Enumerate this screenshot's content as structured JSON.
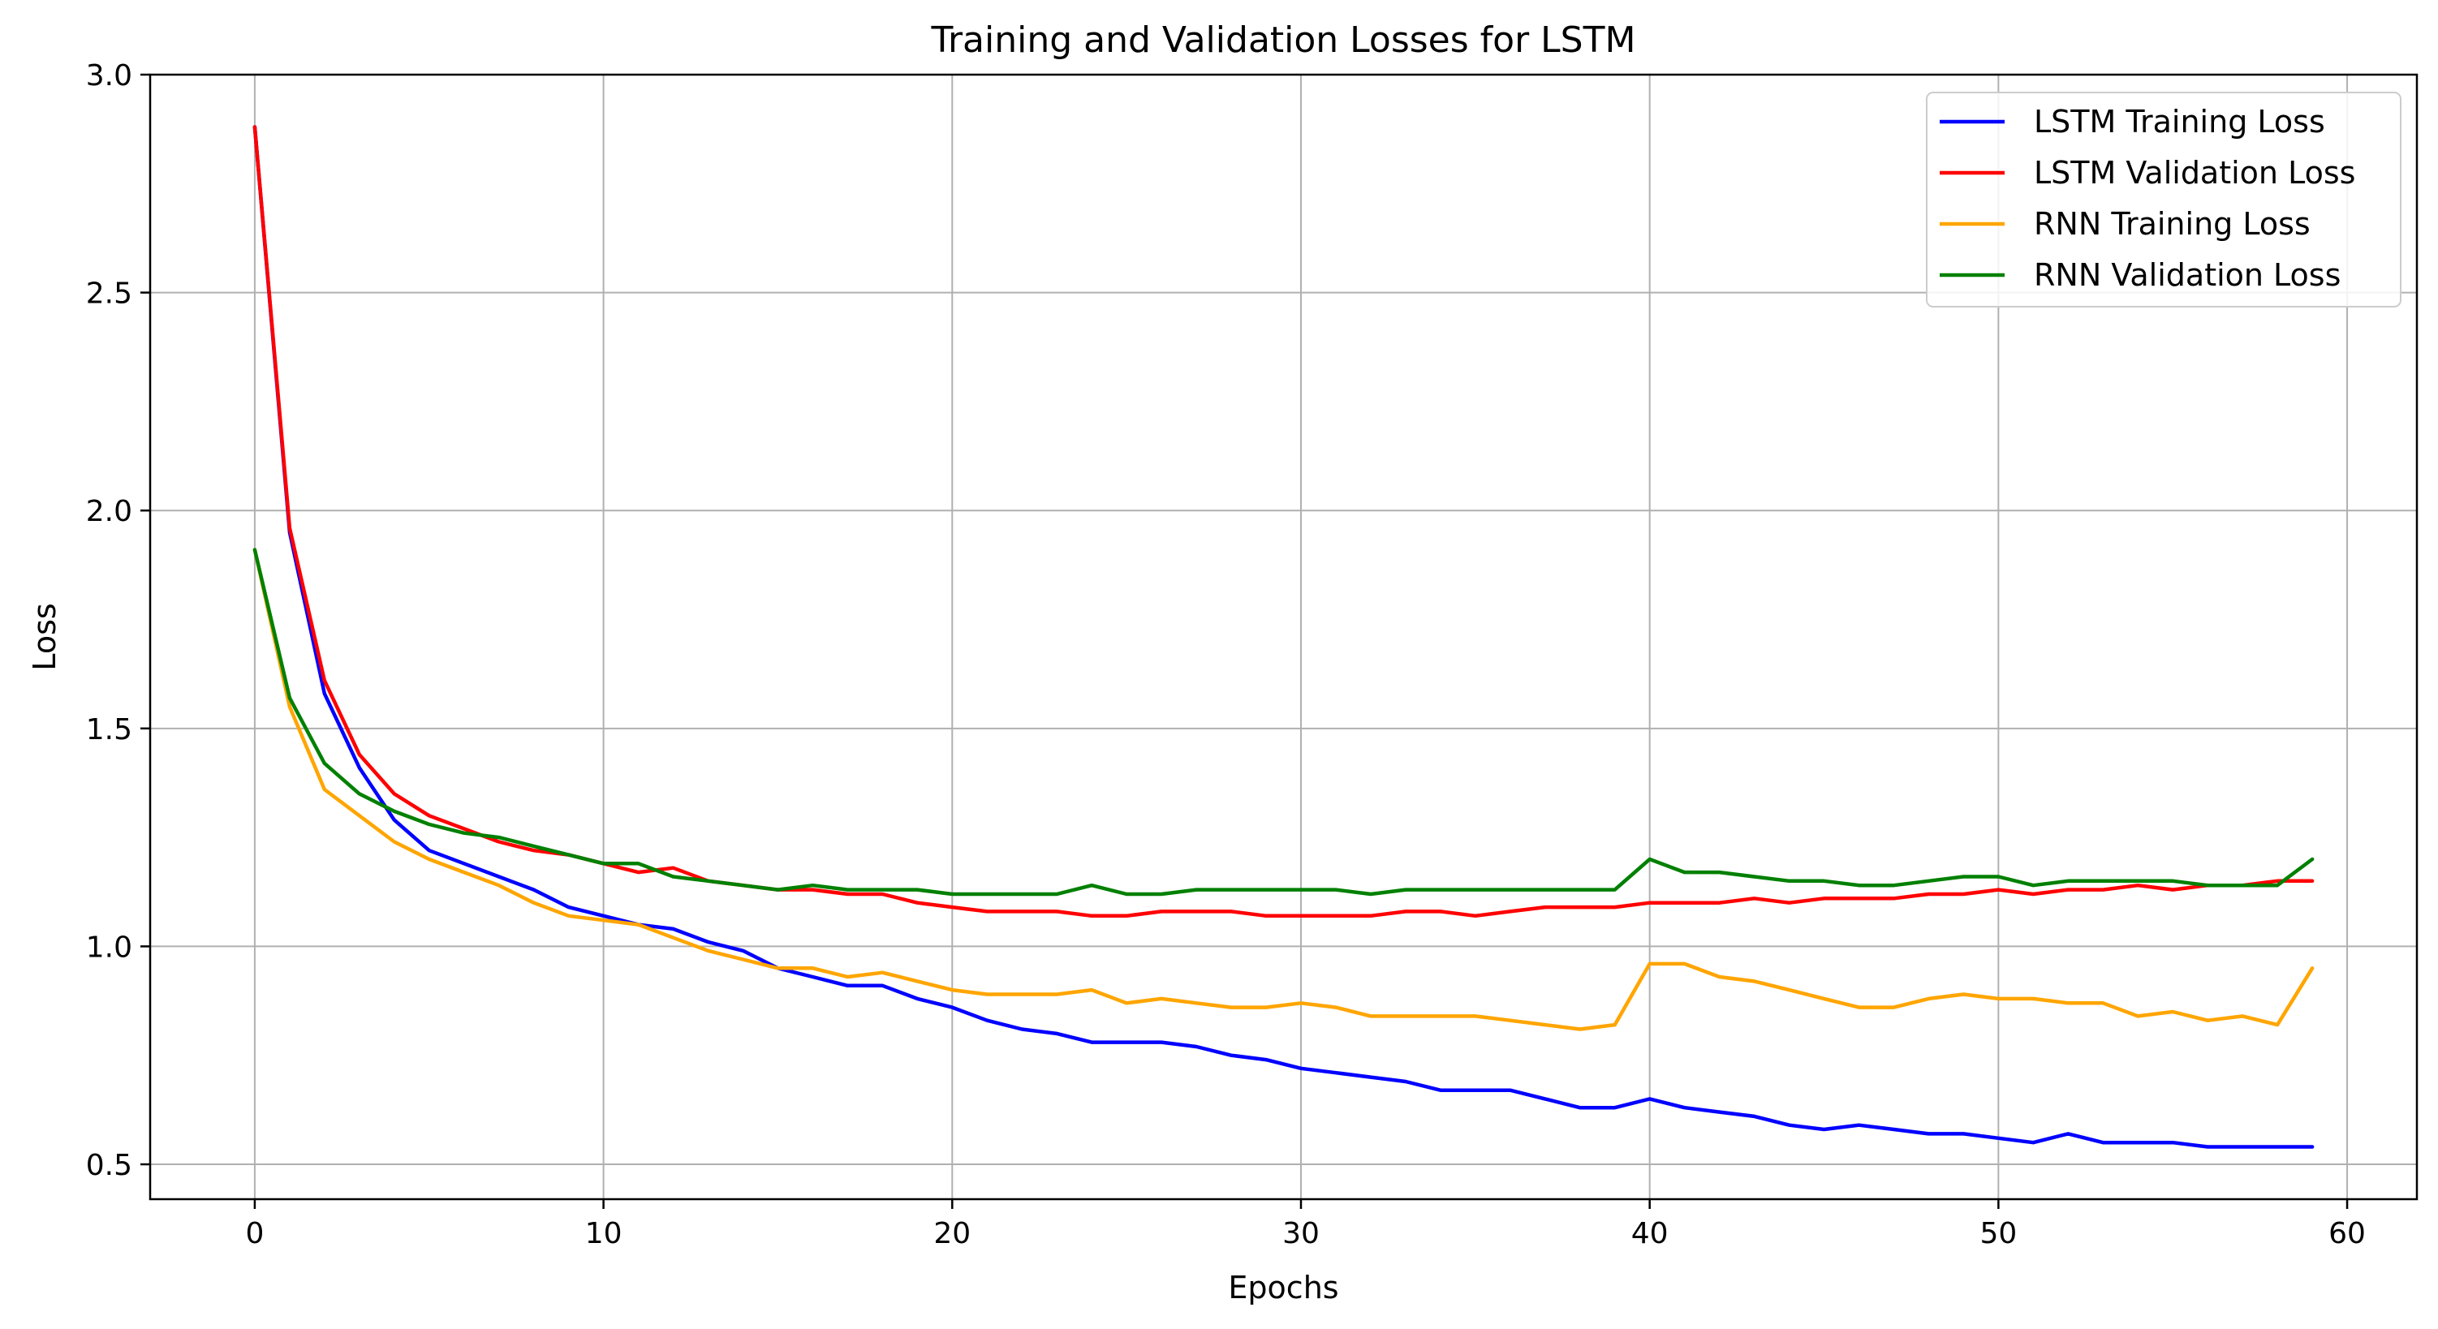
{
  "chart_data": {
    "type": "line",
    "title": "Training and Validation Losses for LSTM",
    "xlabel": "Epochs",
    "ylabel": "Loss",
    "xlim": [
      -3,
      62
    ],
    "ylim": [
      0.42,
      3.0
    ],
    "xticks": [
      0,
      10,
      20,
      30,
      40,
      50,
      60
    ],
    "yticks": [
      0.5,
      1.0,
      1.5,
      2.0,
      2.5,
      3.0
    ],
    "xtick_labels": [
      "0",
      "10",
      "20",
      "30",
      "40",
      "50",
      "60"
    ],
    "ytick_labels": [
      "0.5",
      "1.0",
      "1.5",
      "2.0",
      "2.5",
      "3.0"
    ],
    "grid": true,
    "legend_position": "top-right",
    "x": [
      0,
      1,
      2,
      3,
      4,
      5,
      6,
      7,
      8,
      9,
      10,
      11,
      12,
      13,
      14,
      15,
      16,
      17,
      18,
      19,
      20,
      21,
      22,
      23,
      24,
      25,
      26,
      27,
      28,
      29,
      30,
      31,
      32,
      33,
      34,
      35,
      36,
      37,
      38,
      39,
      40,
      41,
      42,
      43,
      44,
      45,
      46,
      47,
      48,
      49,
      50,
      51,
      52,
      53,
      54,
      55,
      56,
      57,
      58,
      59
    ],
    "series": [
      {
        "name": "LSTM Training Loss",
        "color": "#0000ff",
        "values": [
          2.88,
          1.95,
          1.58,
          1.41,
          1.29,
          1.22,
          1.19,
          1.16,
          1.13,
          1.09,
          1.07,
          1.05,
          1.04,
          1.01,
          0.99,
          0.95,
          0.93,
          0.91,
          0.91,
          0.88,
          0.86,
          0.83,
          0.81,
          0.8,
          0.78,
          0.78,
          0.78,
          0.77,
          0.75,
          0.74,
          0.72,
          0.71,
          0.7,
          0.69,
          0.67,
          0.67,
          0.67,
          0.65,
          0.63,
          0.63,
          0.65,
          0.63,
          0.62,
          0.61,
          0.59,
          0.58,
          0.59,
          0.58,
          0.57,
          0.57,
          0.56,
          0.55,
          0.57,
          0.55,
          0.55,
          0.55,
          0.54,
          0.54,
          0.54,
          0.54
        ]
      },
      {
        "name": "LSTM Validation Loss",
        "color": "#ff0000",
        "values": [
          2.88,
          1.96,
          1.61,
          1.44,
          1.35,
          1.3,
          1.27,
          1.24,
          1.22,
          1.21,
          1.19,
          1.17,
          1.18,
          1.15,
          1.14,
          1.13,
          1.13,
          1.12,
          1.12,
          1.1,
          1.09,
          1.08,
          1.08,
          1.08,
          1.07,
          1.07,
          1.08,
          1.08,
          1.08,
          1.07,
          1.07,
          1.07,
          1.07,
          1.08,
          1.08,
          1.07,
          1.08,
          1.09,
          1.09,
          1.09,
          1.1,
          1.1,
          1.1,
          1.11,
          1.1,
          1.11,
          1.11,
          1.11,
          1.12,
          1.12,
          1.13,
          1.12,
          1.13,
          1.13,
          1.14,
          1.13,
          1.14,
          1.14,
          1.15,
          1.15
        ]
      },
      {
        "name": "RNN Training Loss",
        "color": "#ffa500",
        "values": [
          1.91,
          1.55,
          1.36,
          1.3,
          1.24,
          1.2,
          1.17,
          1.14,
          1.1,
          1.07,
          1.06,
          1.05,
          1.02,
          0.99,
          0.97,
          0.95,
          0.95,
          0.93,
          0.94,
          0.92,
          0.9,
          0.89,
          0.89,
          0.89,
          0.9,
          0.87,
          0.88,
          0.87,
          0.86,
          0.86,
          0.87,
          0.86,
          0.84,
          0.84,
          0.84,
          0.84,
          0.83,
          0.82,
          0.81,
          0.82,
          0.96,
          0.96,
          0.93,
          0.92,
          0.9,
          0.88,
          0.86,
          0.86,
          0.88,
          0.89,
          0.88,
          0.88,
          0.87,
          0.87,
          0.84,
          0.85,
          0.83,
          0.84,
          0.82,
          0.95
        ]
      },
      {
        "name": "RNN Validation Loss",
        "color": "#008000",
        "values": [
          1.91,
          1.57,
          1.42,
          1.35,
          1.31,
          1.28,
          1.26,
          1.25,
          1.23,
          1.21,
          1.19,
          1.19,
          1.16,
          1.15,
          1.14,
          1.13,
          1.14,
          1.13,
          1.13,
          1.13,
          1.12,
          1.12,
          1.12,
          1.12,
          1.14,
          1.12,
          1.12,
          1.13,
          1.13,
          1.13,
          1.13,
          1.13,
          1.12,
          1.13,
          1.13,
          1.13,
          1.13,
          1.13,
          1.13,
          1.13,
          1.2,
          1.17,
          1.17,
          1.16,
          1.15,
          1.15,
          1.14,
          1.14,
          1.15,
          1.16,
          1.16,
          1.14,
          1.15,
          1.15,
          1.15,
          1.15,
          1.14,
          1.14,
          1.14,
          1.2
        ]
      }
    ]
  }
}
